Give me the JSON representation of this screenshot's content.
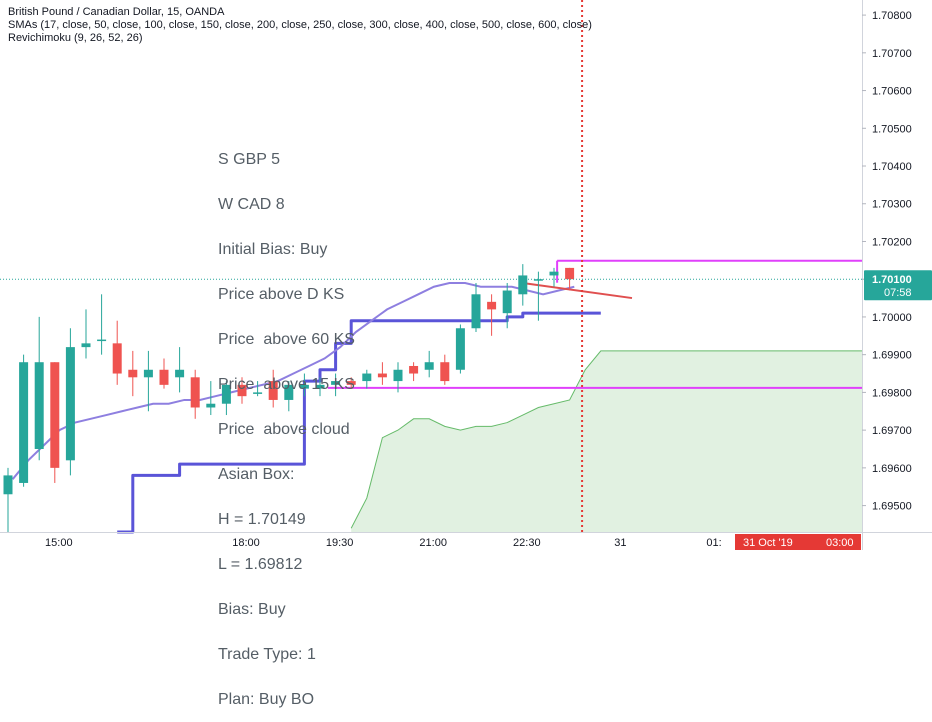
{
  "header": {
    "symbol": "British Pound / Canadian Dollar, 15, OANDA",
    "indicator_sma": "SMAs (17, close, 50, close, 100, close, 150, close, 200, close, 250, close, 300, close, 400, close, 500, close, 600, close)",
    "indicator_ichimoku": "Revichimoku (9, 26, 52, 26)"
  },
  "notes": [
    "S GBP 5",
    "W CAD 8",
    "Initial Bias: Buy",
    "Price above D KS",
    "Price  above 60 KS",
    "Price  above 15 KS",
    "Price  above cloud",
    "Asian Box:",
    "H = 1.70149",
    "L = 1.69812",
    "Bias: Buy",
    "Trade Type: 1",
    "Plan: Buy BO"
  ],
  "price_tag": {
    "price": "1.70100",
    "countdown": "07:58"
  },
  "date_tag": {
    "date": "31 Oct '19",
    "time": "03:00"
  },
  "colors": {
    "up": "#26a69a",
    "down": "#ef5350",
    "sma": "#8e7fe0",
    "kijun": "#5a54d8",
    "box": "#e040fb",
    "cloud": "#c8e6c9",
    "cloud_edge": "#66bb6a",
    "cursor": "#e53935",
    "trend": "#e04f4f",
    "tag_bg": "#26a69a",
    "date_bg": "#e53935"
  },
  "chart_data": {
    "type": "candlestick",
    "y_axis": {
      "range": [
        1.6943,
        1.7084
      ],
      "ticks": [
        "1.70800",
        "1.70700",
        "1.70600",
        "1.70500",
        "1.70400",
        "1.70300",
        "1.70200",
        "1.70100",
        "1.70000",
        "1.69900",
        "1.69800",
        "1.69700",
        "1.69600",
        "1.69500"
      ]
    },
    "x_axis": {
      "ticks": [
        {
          "label": "15:00",
          "bar": 3
        },
        {
          "label": "18:00",
          "bar": 15
        },
        {
          "label": "19:30",
          "bar": 21
        },
        {
          "label": "21:00",
          "bar": 27
        },
        {
          "label": "22:30",
          "bar": 33
        },
        {
          "label": "31",
          "bar": 39
        },
        {
          "label": "01:",
          "bar": 45
        },
        {
          "label": "03:00",
          "bar": 51
        }
      ]
    },
    "candles": [
      {
        "o": 1.6953,
        "h": 1.696,
        "l": 1.6943,
        "c": 1.6958
      },
      {
        "o": 1.6956,
        "h": 1.699,
        "l": 1.6955,
        "c": 1.6988
      },
      {
        "o": 1.6965,
        "h": 1.7,
        "l": 1.6962,
        "c": 1.6988
      },
      {
        "o": 1.6988,
        "h": 1.6988,
        "l": 1.6956,
        "c": 1.696
      },
      {
        "o": 1.6962,
        "h": 1.6997,
        "l": 1.6958,
        "c": 1.6992
      },
      {
        "o": 1.6992,
        "h": 1.7002,
        "l": 1.6989,
        "c": 1.6993
      },
      {
        "o": 1.6994,
        "h": 1.7006,
        "l": 1.699,
        "c": 1.6994
      },
      {
        "o": 1.6993,
        "h": 1.6999,
        "l": 1.6982,
        "c": 1.6985
      },
      {
        "o": 1.6986,
        "h": 1.6991,
        "l": 1.6979,
        "c": 1.6984
      },
      {
        "o": 1.6984,
        "h": 1.6991,
        "l": 1.6975,
        "c": 1.6986
      },
      {
        "o": 1.6986,
        "h": 1.6989,
        "l": 1.6981,
        "c": 1.6982
      },
      {
        "o": 1.6984,
        "h": 1.6992,
        "l": 1.698,
        "c": 1.6986
      },
      {
        "o": 1.6984,
        "h": 1.6986,
        "l": 1.6973,
        "c": 1.6976
      },
      {
        "o": 1.6976,
        "h": 1.6983,
        "l": 1.6974,
        "c": 1.6977
      },
      {
        "o": 1.6977,
        "h": 1.6983,
        "l": 1.6974,
        "c": 1.6982
      },
      {
        "o": 1.6982,
        "h": 1.6984,
        "l": 1.6977,
        "c": 1.6979
      },
      {
        "o": 1.698,
        "h": 1.6983,
        "l": 1.6979,
        "c": 1.698
      },
      {
        "o": 1.6983,
        "h": 1.6986,
        "l": 1.6976,
        "c": 1.6978
      },
      {
        "o": 1.6978,
        "h": 1.6983,
        "l": 1.6975,
        "c": 1.6982
      },
      {
        "o": 1.6981,
        "h": 1.6985,
        "l": 1.6979,
        "c": 1.6982
      },
      {
        "o": 1.6981,
        "h": 1.6984,
        "l": 1.6979,
        "c": 1.6982
      },
      {
        "o": 1.6982,
        "h": 1.6985,
        "l": 1.6979,
        "c": 1.6983
      },
      {
        "o": 1.6983,
        "h": 1.6984,
        "l": 1.6981,
        "c": 1.6982
      },
      {
        "o": 1.6983,
        "h": 1.6986,
        "l": 1.6981,
        "c": 1.6985
      },
      {
        "o": 1.6985,
        "h": 1.6988,
        "l": 1.6982,
        "c": 1.6984
      },
      {
        "o": 1.6983,
        "h": 1.6988,
        "l": 1.698,
        "c": 1.6986
      },
      {
        "o": 1.6987,
        "h": 1.6988,
        "l": 1.6983,
        "c": 1.6985
      },
      {
        "o": 1.6986,
        "h": 1.6991,
        "l": 1.6984,
        "c": 1.6988
      },
      {
        "o": 1.6988,
        "h": 1.699,
        "l": 1.6982,
        "c": 1.6983
      },
      {
        "o": 1.6986,
        "h": 1.6998,
        "l": 1.6985,
        "c": 1.6997
      },
      {
        "o": 1.6997,
        "h": 1.7009,
        "l": 1.6996,
        "c": 1.7006
      },
      {
        "o": 1.7004,
        "h": 1.7006,
        "l": 1.6995,
        "c": 1.7002
      },
      {
        "o": 1.7001,
        "h": 1.7009,
        "l": 1.6997,
        "c": 1.7007
      },
      {
        "o": 1.7006,
        "h": 1.7014,
        "l": 1.7003,
        "c": 1.7011
      },
      {
        "o": 1.701,
        "h": 1.7012,
        "l": 1.6999,
        "c": 1.701
      },
      {
        "o": 1.7011,
        "h": 1.7013,
        "l": 1.7008,
        "c": 1.7012
      },
      {
        "o": 1.7013,
        "h": 1.7013,
        "l": 1.7007,
        "c": 1.701
      }
    ],
    "sma17": [
      1.6957,
      1.6962,
      1.6966,
      1.697,
      1.6972,
      1.6973,
      1.6974,
      1.6975,
      1.6976,
      1.6977,
      1.6977,
      1.6978,
      1.6978,
      1.6979,
      1.698,
      1.6981,
      1.6982,
      1.6983,
      1.6985,
      1.6987,
      1.6989,
      1.6992,
      1.6996,
      1.6999,
      1.7002,
      1.7004,
      1.7006,
      1.7008,
      1.7009,
      1.7009,
      1.7008,
      1.7008,
      1.7008,
      1.7007,
      1.7006,
      1.7007,
      1.7008
    ],
    "kijun_steps": [
      [
        7,
        1.6943
      ],
      [
        8,
        1.6958
      ],
      [
        11,
        1.6961
      ],
      [
        19,
        1.6983
      ],
      [
        20,
        1.6986
      ],
      [
        21,
        1.6993
      ],
      [
        22,
        1.6999
      ],
      [
        32,
        1.7
      ],
      [
        33,
        1.7001
      ]
    ],
    "asian_box": {
      "high": 1.70149,
      "low": 1.69812
    },
    "trend_line": [
      [
        33,
        1.7009
      ],
      [
        40,
        1.7005
      ]
    ],
    "cloud_top": [
      [
        22,
        1.6944
      ],
      [
        23,
        1.6952
      ],
      [
        24,
        1.6968
      ],
      [
        25,
        1.697
      ],
      [
        26,
        1.6973
      ],
      [
        27,
        1.6973
      ],
      [
        28,
        1.6971
      ],
      [
        29,
        1.697
      ],
      [
        30,
        1.6971
      ],
      [
        31,
        1.6971
      ],
      [
        32,
        1.6972
      ],
      [
        33,
        1.6974
      ],
      [
        34,
        1.6976
      ],
      [
        35,
        1.6977
      ],
      [
        36,
        1.6978
      ],
      [
        37,
        1.6986
      ],
      [
        38,
        1.6991
      ]
    ],
    "cursor_bar": 36.8
  }
}
